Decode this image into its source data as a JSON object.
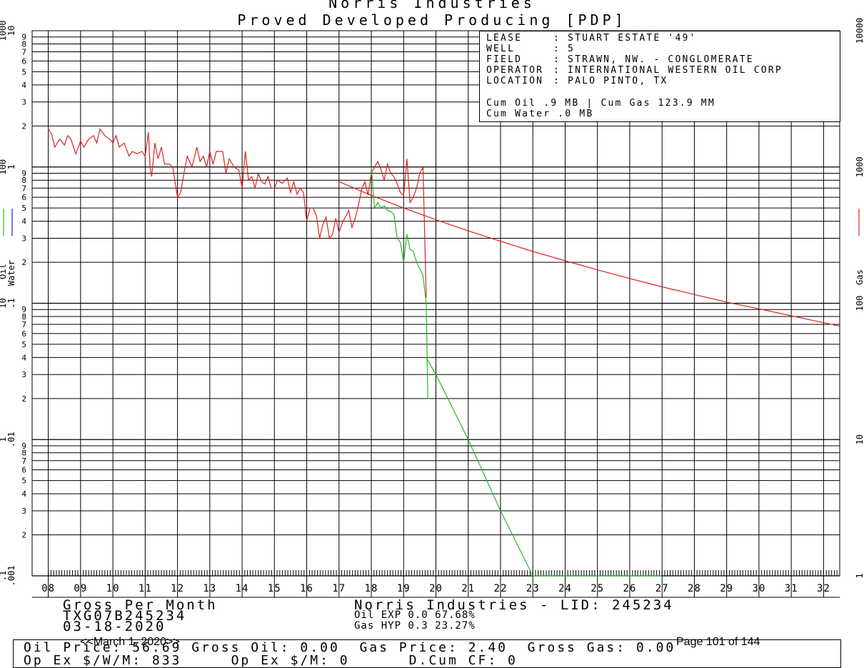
{
  "header": {
    "company": "Norris Industries",
    "subtitle": "Proved Developed Producing [PDP]"
  },
  "info": {
    "lease_key": "LEASE",
    "lease_val": ": STUART ESTATE '49'",
    "well_key": "WELL",
    "well_val": ": 5",
    "field_key": "FIELD",
    "field_val": ": STRAWN, NW. - CONGLOMERATE",
    "operator_key": "OPERATOR",
    "operator_val": ": INTERNATIONAL WESTERN OIL CORP",
    "location_key": "LOCATION",
    "location_val": ": PALO PINTO, TX",
    "cum_line1": "Cum Oil .9 MB | Cum Gas 123.9 MM",
    "cum_line2": "Cum Water .0 MB"
  },
  "footer": {
    "unit_label": "Gross Per Month",
    "id_code": "TXG07B245234",
    "date": "03-18-2020",
    "lid_label": "Norris Industries - LID: 245234",
    "oil_exp": "Oil EXP 0.0 67.68%",
    "gas_hyp": "Gas HYP 0.3 23.27%",
    "bottom_line1": "Oil Price: 56.69 Gross Oil: 0.00  Gas Price: 2.40  Gross Gas: 0.00",
    "bottom_line2": "Op Ex $/W/M: 833     Op Ex $/M: 0      D.Cum CF: 0",
    "march_label": "<<March 1, 2020>>",
    "page_label": "Page 101 of 144"
  },
  "chart_data": {
    "type": "line",
    "x_label_suffix": "year (2-digit)",
    "x_ticks": [
      "08",
      "09",
      "10",
      "11",
      "12",
      "13",
      "14",
      "15",
      "16",
      "17",
      "18",
      "19",
      "20",
      "21",
      "22",
      "23",
      "24",
      "25",
      "26",
      "27",
      "28",
      "29",
      "30",
      "31",
      "32"
    ],
    "xlim": [
      2007.5,
      2032.5
    ],
    "y_scale": "log",
    "left_axis_oil": {
      "title": "Oil",
      "ticks": [
        ".1",
        "1",
        "10",
        "100",
        "1000"
      ],
      "color": "#22bb22"
    },
    "left_axis_water": {
      "title": "Water",
      "ticks": [
        ".001",
        ".01",
        ".1",
        "1",
        "10"
      ],
      "color": "#2222dd"
    },
    "right_axis_gas": {
      "title": "Gas",
      "ticks": [
        "1",
        "10",
        "100",
        "1000",
        "10000"
      ],
      "color": "#dd2222"
    },
    "minor_tick_labels": [
      "2",
      "3",
      "4",
      "5",
      "6",
      "7",
      "8",
      "9"
    ],
    "series": [
      {
        "name": "Gas",
        "color": "#dd2222",
        "x": [
          2008.0,
          2008.1,
          2008.2,
          2008.35,
          2008.5,
          2008.6,
          2008.7,
          2008.85,
          2009.0,
          2009.1,
          2009.25,
          2009.4,
          2009.5,
          2009.6,
          2009.75,
          2009.9,
          2010.0,
          2010.1,
          2010.2,
          2010.35,
          2010.5,
          2010.6,
          2010.75,
          2010.9,
          2011.0,
          2011.1,
          2011.15,
          2011.2,
          2011.3,
          2011.4,
          2011.5,
          2011.6,
          2011.75,
          2011.85,
          2012.0,
          2012.1,
          2012.2,
          2012.3,
          2012.45,
          2012.6,
          2012.7,
          2012.8,
          2012.9,
          2013.0,
          2013.1,
          2013.2,
          2013.3,
          2013.4,
          2013.5,
          2013.6,
          2013.75,
          2013.9,
          2014.0,
          2014.1,
          2014.2,
          2014.3,
          2014.4,
          2014.5,
          2014.6,
          2014.7,
          2014.8,
          2014.9,
          2015.0,
          2015.1,
          2015.25,
          2015.4,
          2015.5,
          2015.6,
          2015.7,
          2015.8,
          2015.9,
          2016.0,
          2016.1,
          2016.2,
          2016.3,
          2016.4,
          2016.5,
          2016.6,
          2016.7,
          2016.8,
          2016.9,
          2017.0,
          2017.1,
          2017.2,
          2017.3,
          2017.4,
          2017.5,
          2017.6,
          2017.7,
          2017.8,
          2017.9,
          2018.0,
          2018.1,
          2018.2,
          2018.3,
          2018.4,
          2018.5,
          2018.6,
          2018.7,
          2018.8,
          2018.9,
          2019.0,
          2019.1,
          2019.2,
          2019.3,
          2019.4,
          2019.5,
          2019.6,
          2019.7
        ],
        "y": [
          1900,
          1750,
          1400,
          1600,
          1450,
          1700,
          1600,
          1250,
          1550,
          1400,
          1600,
          1700,
          1500,
          1900,
          1700,
          1600,
          1500,
          1700,
          1400,
          1500,
          1200,
          1300,
          1250,
          1300,
          1200,
          1800,
          1000,
          850,
          1500,
          1150,
          1400,
          1050,
          1050,
          1000,
          600,
          650,
          900,
          1200,
          1000,
          1400,
          1100,
          1200,
          1000,
          1300,
          1050,
          1300,
          1300,
          1300,
          900,
          1150,
          1000,
          950,
          700,
          1300,
          800,
          850,
          700,
          900,
          780,
          750,
          850,
          700,
          700,
          800,
          760,
          830,
          650,
          780,
          630,
          700,
          650,
          400,
          500,
          500,
          440,
          300,
          380,
          430,
          300,
          320,
          420,
          330,
          390,
          430,
          480,
          360,
          420,
          520,
          680,
          780,
          620,
          900,
          1000,
          1100,
          950,
          800,
          1050,
          900,
          850,
          750,
          650,
          620,
          1150,
          550,
          600,
          700,
          900,
          1000,
          110
        ],
        "ylim": [
          1,
          10000
        ]
      },
      {
        "name": "Gas forecast",
        "color": "#dd2222",
        "x": [
          2017.0,
          2018.0,
          2019.0,
          2020.0,
          2021.0,
          2022.0,
          2023.0,
          2024.0,
          2025.0,
          2026.0,
          2027.0,
          2028.0,
          2029.0,
          2030.0,
          2031.0,
          2032.0,
          2032.5
        ],
        "y": [
          780,
          620,
          500,
          410,
          340,
          285,
          240,
          205,
          176,
          152,
          132,
          116,
          102,
          91,
          81,
          72,
          68
        ],
        "ylim": [
          1,
          10000
        ]
      },
      {
        "name": "Oil",
        "color": "#22bb22",
        "x": [
          2018.0,
          2018.1,
          2018.2,
          2018.3,
          2018.4,
          2018.5,
          2018.6,
          2018.7,
          2018.8,
          2018.9,
          2019.0,
          2019.1,
          2019.2,
          2019.3,
          2019.4,
          2019.5,
          2019.6,
          2019.7,
          2019.75,
          2019.8
        ],
        "y": [
          100,
          50,
          55,
          50,
          52,
          48,
          47,
          45,
          30,
          28,
          20,
          32,
          25,
          24,
          20,
          18,
          16,
          10,
          2.0,
          2.0
        ],
        "ylim": [
          0.1,
          1000
        ]
      },
      {
        "name": "Oil forecast",
        "color": "#22bb22",
        "x": [
          2019.7,
          2020.0,
          2021.0,
          2022.0,
          2023.0,
          2024.0,
          2025.0,
          2026.0,
          2027.0
        ],
        "y": [
          4.0,
          3.0,
          1.0,
          0.3,
          0.1,
          0.1,
          0.1,
          0.1,
          0.1
        ],
        "ylim": [
          0.1,
          1000
        ]
      }
    ],
    "grid": true
  }
}
